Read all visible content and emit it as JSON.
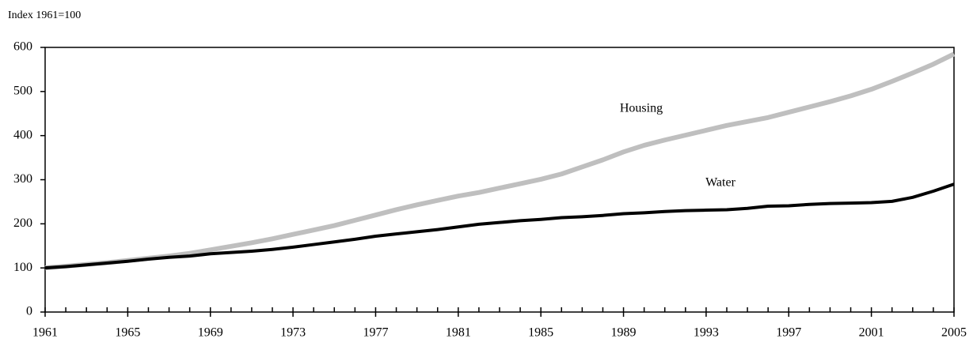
{
  "chart_data": {
    "type": "line",
    "y_axis_label": "Index 1961=100",
    "x": [
      1961,
      1962,
      1963,
      1964,
      1965,
      1966,
      1967,
      1968,
      1969,
      1970,
      1971,
      1972,
      1973,
      1974,
      1975,
      1976,
      1977,
      1978,
      1979,
      1980,
      1981,
      1982,
      1983,
      1984,
      1985,
      1986,
      1987,
      1988,
      1989,
      1990,
      1991,
      1992,
      1993,
      1994,
      1995,
      1996,
      1997,
      1998,
      1999,
      2000,
      2001,
      2002,
      2003,
      2004,
      2005
    ],
    "series": [
      {
        "name": "Housing",
        "color": "#bfbfbf",
        "values": [
          100,
          104,
          108,
          112,
          117,
          122,
          127,
          133,
          141,
          149,
          157,
          166,
          176,
          186,
          196,
          208,
          220,
          232,
          243,
          253,
          263,
          271,
          281,
          291,
          301,
          313,
          329,
          345,
          363,
          378,
          390,
          401,
          412,
          423,
          432,
          441,
          453,
          465,
          477,
          490,
          505,
          523,
          542,
          562,
          585
        ]
      },
      {
        "name": "Water",
        "color": "#000000",
        "values": [
          100,
          103,
          107,
          111,
          115,
          120,
          124,
          127,
          132,
          135,
          138,
          142,
          147,
          153,
          159,
          165,
          172,
          177,
          182,
          187,
          193,
          199,
          203,
          207,
          210,
          214,
          216,
          219,
          223,
          225,
          228,
          230,
          231,
          232,
          235,
          240,
          241,
          244,
          246,
          247,
          248,
          251,
          260,
          274,
          290
        ]
      }
    ],
    "xlim": [
      1961,
      2005
    ],
    "xticks": [
      1961,
      1965,
      1969,
      1973,
      1977,
      1981,
      1985,
      1989,
      1993,
      1997,
      2001,
      2005
    ],
    "xminorticks": [
      1961,
      1962,
      1963,
      1964,
      1965,
      1966,
      1967,
      1968,
      1969,
      1970,
      1971,
      1972,
      1973,
      1974,
      1975,
      1976,
      1977,
      1978,
      1979,
      1980,
      1981,
      1982,
      1983,
      1984,
      1985,
      1986,
      1987,
      1988,
      1989,
      1990,
      1991,
      1992,
      1993,
      1994,
      1995,
      1996,
      1997,
      1998,
      1999,
      2000,
      2001,
      2002,
      2003,
      2004,
      2005
    ],
    "ylim": [
      0,
      600
    ],
    "yticks": [
      0,
      100,
      200,
      300,
      400,
      500,
      600
    ],
    "grid": false,
    "legend": "inline"
  }
}
